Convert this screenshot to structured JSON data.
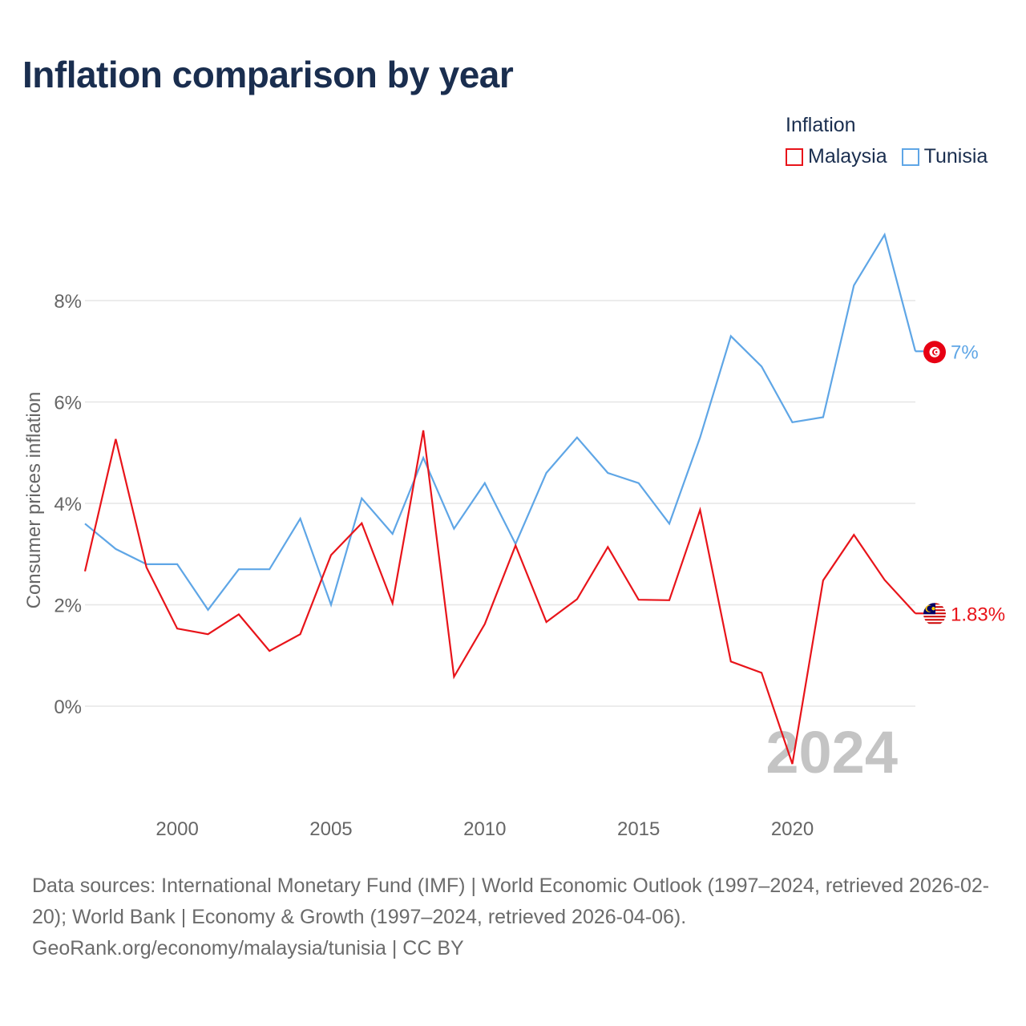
{
  "title": "Inflation comparison by year",
  "legend": {
    "title": "Inflation",
    "items": [
      {
        "label": "Malaysia",
        "color": "#e8141a"
      },
      {
        "label": "Tunisia",
        "color": "#5fa6e6"
      }
    ]
  },
  "chart_data": {
    "type": "line",
    "title": "Inflation comparison by year",
    "xlabel": "",
    "ylabel": "Consumer prices inflation",
    "xlim": [
      1997,
      2024
    ],
    "ylim": [
      -1.5,
      9.5
    ],
    "yticks": [
      0,
      2,
      4,
      6,
      8
    ],
    "ytick_labels": [
      "0%",
      "2%",
      "4%",
      "6%",
      "8%"
    ],
    "xticks": [
      2000,
      2005,
      2010,
      2015,
      2020
    ],
    "xtick_labels": [
      "2000",
      "2005",
      "2010",
      "2015",
      "2020"
    ],
    "grid": true,
    "year_watermark": "2024",
    "x": [
      1997,
      1998,
      1999,
      2000,
      2001,
      2002,
      2003,
      2004,
      2005,
      2006,
      2007,
      2008,
      2009,
      2010,
      2011,
      2012,
      2013,
      2014,
      2015,
      2016,
      2017,
      2018,
      2019,
      2020,
      2021,
      2022,
      2023,
      2024
    ],
    "series": [
      {
        "name": "Tunisia",
        "color": "#5fa6e6",
        "end_label": "7%",
        "flag_icon": "tunisia-flag-icon",
        "values": [
          3.6,
          3.1,
          2.8,
          2.8,
          1.9,
          2.7,
          2.7,
          3.7,
          2.0,
          4.1,
          3.4,
          4.9,
          3.5,
          4.4,
          3.2,
          4.6,
          5.3,
          4.6,
          4.4,
          3.6,
          5.3,
          7.3,
          6.7,
          5.6,
          5.7,
          8.3,
          9.3,
          7.0
        ]
      },
      {
        "name": "Malaysia",
        "color": "#e8141a",
        "end_label": "1.83%",
        "flag_icon": "malaysia-flag-icon",
        "values": [
          2.66,
          5.27,
          2.74,
          1.53,
          1.42,
          1.81,
          1.09,
          1.42,
          2.98,
          3.61,
          2.03,
          5.44,
          0.58,
          1.62,
          3.17,
          1.66,
          2.11,
          3.14,
          2.1,
          2.09,
          3.87,
          0.88,
          0.66,
          -1.14,
          2.48,
          3.38,
          2.49,
          1.83
        ]
      }
    ]
  },
  "footer": {
    "sources": "Data sources: International Monetary Fund (IMF) | World Economic Outlook (1997–2024, retrieved 2026-02-20); World Bank | Economy & Growth (1997–2024, retrieved 2026-04-06).",
    "credit": "GeoRank.org/economy/malaysia/tunisia | CC BY"
  }
}
